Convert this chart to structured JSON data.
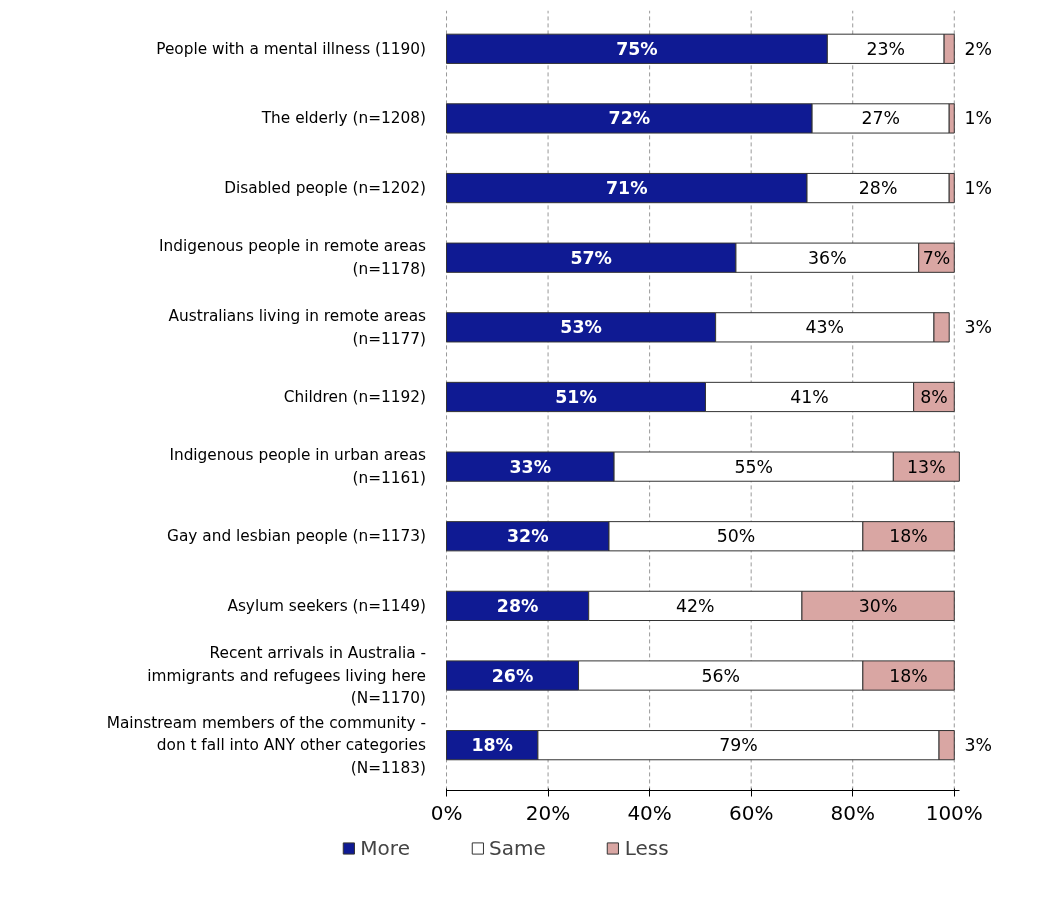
{
  "chart_data": {
    "type": "bar",
    "orientation": "horizontal",
    "stacked": true,
    "categories": [
      "People with a mental illness (1190)",
      "The elderly (n=1208)",
      "Disabled people (n=1202)",
      "Indigenous people in remote areas (n=1178)",
      "Australians living in remote areas (n=1177)",
      "Children (n=1192)",
      "Indigenous people in urban areas (n=1161)",
      "Gay and lesbian people (n=1173)",
      "Asylum seekers (n=1149)",
      "Recent arrivals in Australia - immigrants and refugees living here (N=1170)",
      "Mainstream members of the community - don t fall into ANY other categories (N=1183)"
    ],
    "series": [
      {
        "name": "More",
        "color": "#0f1a93",
        "values": [
          75,
          72,
          71,
          57,
          53,
          51,
          33,
          32,
          28,
          26,
          18
        ],
        "value_labels": [
          "75%",
          "72%",
          "71%",
          "57%",
          "53%",
          "51%",
          "33%",
          "32%",
          "28%",
          "26%",
          "18%"
        ]
      },
      {
        "name": "Same",
        "color": "#ffffff",
        "values": [
          23,
          27,
          28,
          36,
          43,
          41,
          55,
          50,
          42,
          56,
          79
        ],
        "value_labels": [
          "23%",
          "27%",
          "28%",
          "36%",
          "43%",
          "41%",
          "55%",
          "50%",
          "42%",
          "56%",
          "79%"
        ]
      },
      {
        "name": "Less",
        "color": "#d9a6a3",
        "values": [
          2,
          1,
          1,
          7,
          3,
          8,
          13,
          18,
          30,
          18,
          3
        ],
        "value_labels": [
          "2%",
          "1%",
          "1%",
          "7%",
          "3%",
          "8%",
          "13%",
          "18%",
          "30%",
          "18%",
          "3%"
        ]
      }
    ],
    "xlim": [
      0,
      101
    ],
    "xticks": [
      {
        "value": 0,
        "label": "0%"
      },
      {
        "value": 20,
        "label": "20%"
      },
      {
        "value": 40,
        "label": "40%"
      },
      {
        "value": 60,
        "label": "60%"
      },
      {
        "value": 80,
        "label": "80%"
      },
      {
        "value": 100,
        "label": "100%"
      }
    ],
    "grid": "x",
    "legend": "bottom"
  }
}
